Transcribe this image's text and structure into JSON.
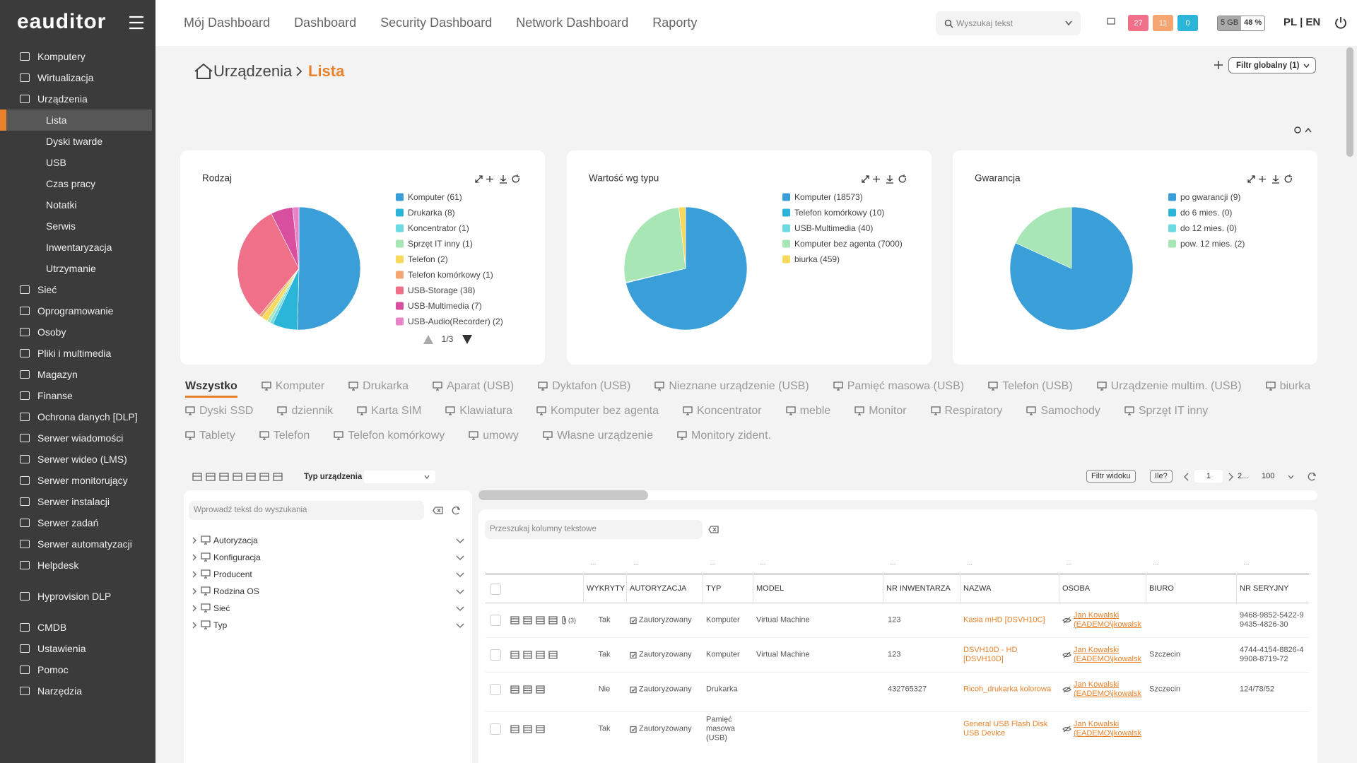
{
  "header": {
    "logo": "eauditor",
    "nav": [
      "Mój Dashboard",
      "Dashboard",
      "Security Dashboard",
      "Network Dashboard",
      "Raporty"
    ],
    "search_placeholder": "Wyszukaj tekst",
    "badges": [
      {
        "value": 27,
        "color": "#f0708a"
      },
      {
        "value": 11,
        "color": "#f5a571"
      },
      {
        "value": 0,
        "color": "#2bb5d8"
      }
    ],
    "storage": "5 GB",
    "usage": "48 %",
    "lang": "PL | EN"
  },
  "sidebar": {
    "sections": [
      [
        {
          "label": "Komputery"
        },
        {
          "label": "Wirtualizacja"
        },
        {
          "label": "Urządzenia",
          "children": [
            "Lista",
            "Dyski twarde",
            "USB",
            "Czas pracy",
            "Notatki",
            "Serwis",
            "Inwentaryzacja",
            "Utrzymanie"
          ],
          "active": 0
        },
        {
          "label": "Sieć"
        },
        {
          "label": "Oprogramowanie"
        },
        {
          "label": "Osoby"
        },
        {
          "label": "Pliki i multimedia"
        },
        {
          "label": "Magazyn"
        },
        {
          "label": "Finanse"
        },
        {
          "label": "Ochrona danych [DLP]"
        },
        {
          "label": "Serwer wiadomości"
        },
        {
          "label": "Serwer wideo (LMS)"
        },
        {
          "label": "Serwer monitorujący"
        },
        {
          "label": "Serwer instalacji"
        },
        {
          "label": "Serwer zadań"
        },
        {
          "label": "Serwer automatyzacji"
        },
        {
          "label": "Helpdesk"
        }
      ],
      [
        {
          "label": "Hyprovision DLP"
        }
      ],
      [
        {
          "label": "CMDB"
        },
        {
          "label": "Ustawienia"
        },
        {
          "label": "Pomoc"
        },
        {
          "label": "Narzędzia"
        }
      ]
    ]
  },
  "page": {
    "breadcrumb": [
      "Urządzenia",
      "Lista"
    ],
    "global_filter": "Filtr globalny (1)"
  },
  "charts": [
    {
      "type": "pie",
      "title": "Rodzaj",
      "categories": [
        "Komputer (61)",
        "Drukarka (8)",
        "Koncentrator (1)",
        "Sprzęt IT inny (1)",
        "Telefon (2)",
        "Telefon komórkowy (1)",
        "USB-Storage (38)",
        "USB-Multimedia (7)",
        "USB-Audio(Recorder) (2)"
      ],
      "values": [
        61,
        8,
        1,
        1,
        2,
        1,
        38,
        7,
        2
      ],
      "colors": [
        "#3a9fd8",
        "#2bb5d8",
        "#6dd9e0",
        "#a8e6b5",
        "#f7d95c",
        "#f5a571",
        "#f0708a",
        "#d94fa0",
        "#e884c8"
      ],
      "pager": "1/3"
    },
    {
      "type": "pie",
      "title": "Wartość wg typu",
      "categories": [
        "Komputer (18573)",
        "Telefon komórkowy (10)",
        "USB-Multimedia (40)",
        "Komputer bez agenta (7000)",
        "biurka (459)"
      ],
      "values": [
        18573,
        10,
        40,
        7000,
        459
      ],
      "colors": [
        "#3a9fd8",
        "#2bb5d8",
        "#6dd9e0",
        "#a8e6b5",
        "#f7d95c"
      ]
    },
    {
      "type": "pie",
      "title": "Gwarancja",
      "categories": [
        "po gwarancji (9)",
        "do 6 mies. (0)",
        "do 12 mies. (0)",
        "pow. 12 mies. (2)"
      ],
      "values": [
        9,
        0,
        0,
        2
      ],
      "colors": [
        "#3a9fd8",
        "#2bb5d8",
        "#6dd9e0",
        "#a8e6b5"
      ]
    }
  ],
  "tabs": {
    "rows": [
      [
        "Wszystko",
        "Komputer",
        "Drukarka",
        "Aparat (USB)",
        "Dyktafon (USB)",
        "Nieznane urządzenie (USB)",
        "Pamięć masowa (USB)",
        "Telefon (USB)",
        "Urządzenie multim. (USB)",
        "biurka"
      ],
      [
        "Dyski SSD",
        "dziennik",
        "Karta SIM",
        "Klawiatura",
        "Komputer bez agenta",
        "Koncentrator",
        "meble",
        "Monitor",
        "Respiratory",
        "Samochody",
        "Sprzęt IT inny"
      ],
      [
        "Tablety",
        "Telefon",
        "Telefon komórkowy",
        "umowy",
        "Własne urządzenie",
        "Monitory zident."
      ]
    ],
    "active": [
      0,
      0
    ]
  },
  "toolbar": {
    "type_label": "Typ urządzenia",
    "view_filter": "Filtr widoku",
    "count": "Ile?",
    "page": 1,
    "next": "2...",
    "page_size": 100
  },
  "filter_panel": {
    "placeholder": "Wprowadź tekst do wyszukania",
    "tree": [
      "Autoryzacja",
      "Konfiguracja",
      "Producent",
      "Rodzina OS",
      "Sieć",
      "Typ"
    ]
  },
  "table": {
    "placeholder": "Przeszukaj kolumny tekstowe",
    "filter_hint": "...",
    "columns": [
      "WYKRYTY",
      "AUTORYZACJA",
      "TYP",
      "MODEL",
      "NR INWENTARZA",
      "NAZWA",
      "OSOBA",
      "BIURO",
      "NR SERYJNY"
    ],
    "rows": [
      [
        "Tak",
        "Zautoryzowany",
        "Komputer",
        "Virtual Machine",
        123,
        "Kasia mHD [DSVH10C]",
        "Jan Kowalski (EADEMO\\jkowalsk",
        null,
        "9468-9852-5422-9 9435-4826-30"
      ],
      [
        "Tak",
        "Zautoryzowany",
        "Komputer",
        "Virtual Machine",
        123,
        "DSVH10D - HD [DSVH10D]",
        "Jan Kowalski (EADEMO\\jkowalsk",
        "Szczecin",
        "4744-4154-8826-4 9908-8719-72"
      ],
      [
        "Nie",
        "Zautoryzowany",
        "Drukarka",
        null,
        432765327,
        "Ricoh_drukarka kolorowa",
        "Jan Kowalski (EADEMO\\jkowalsk",
        "Szczecin",
        "124/78/52"
      ],
      [
        "Tak",
        "Zautoryzowany",
        "Pamięć masowa (USB)",
        null,
        null,
        "General USB Flash Disk USB Device",
        "Jan Kowalski (EADEMO\\jkowalsk",
        null,
        null
      ]
    ],
    "row_notes": [
      "(3)",
      null,
      null,
      null
    ]
  }
}
